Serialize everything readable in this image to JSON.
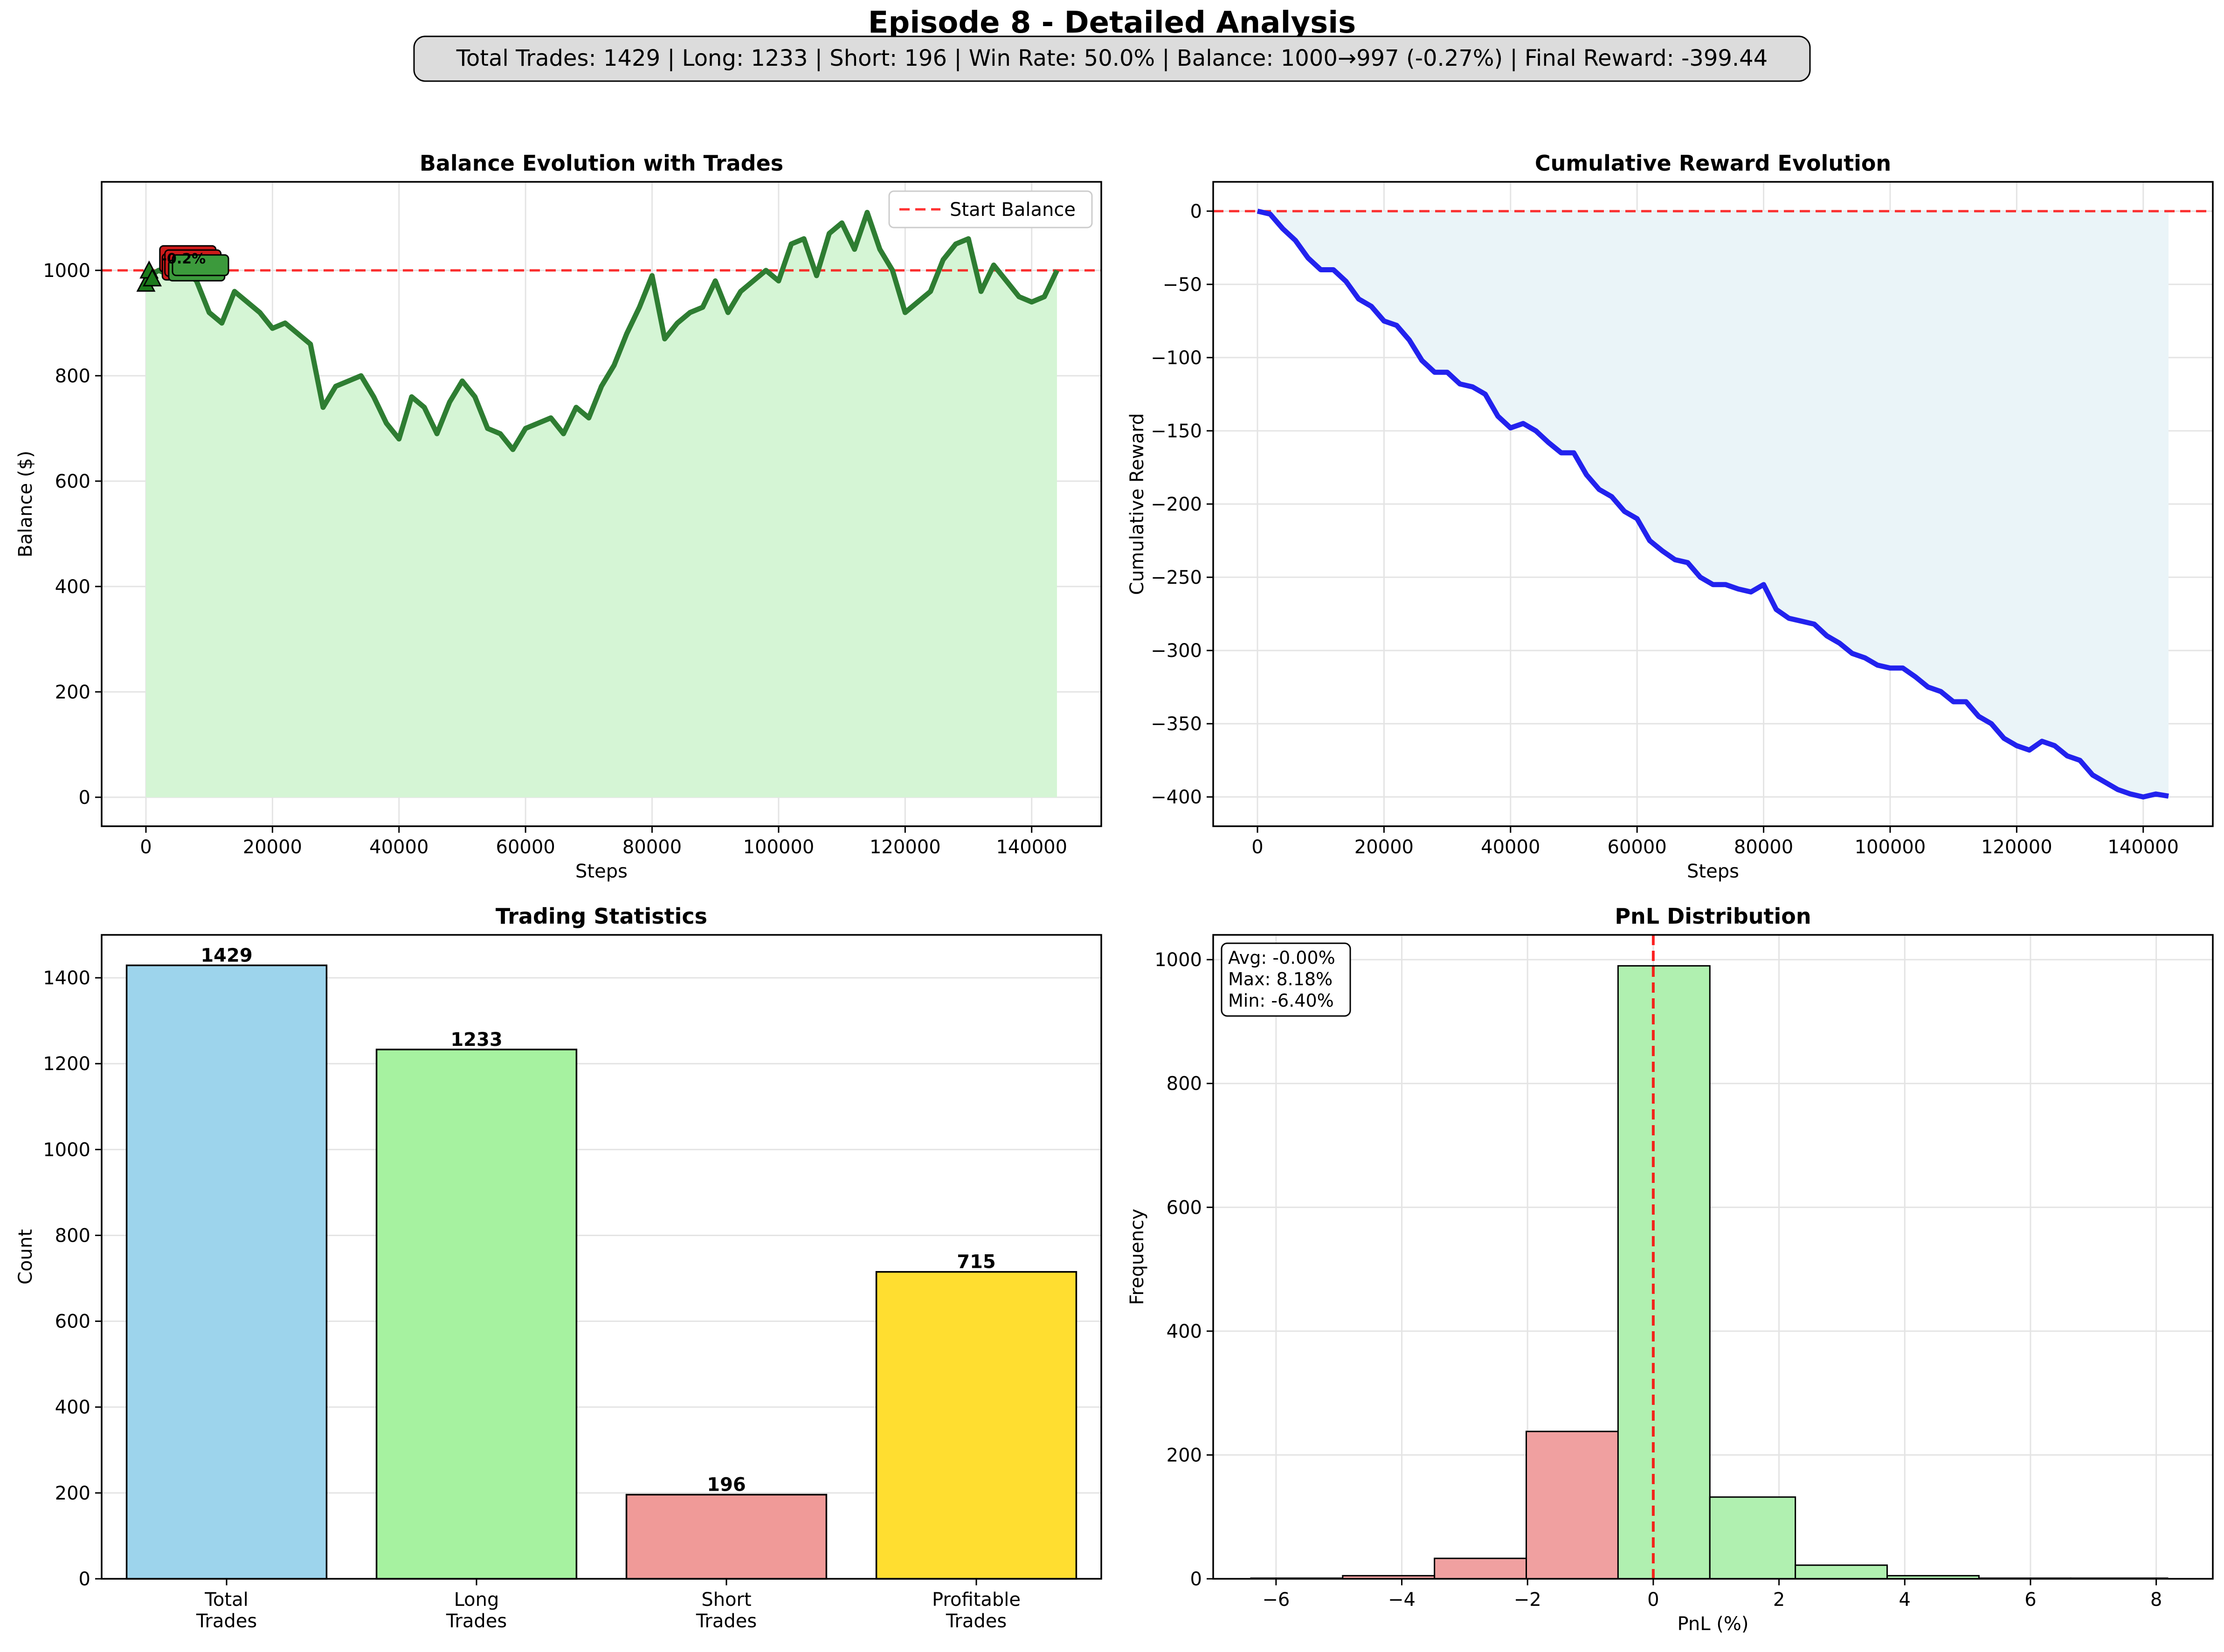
{
  "figure": {
    "title": "Episode 8 - Detailed Analysis",
    "summary": "Total Trades: 1429 | Long: 1233 | Short: 196 | Win Rate: 50.0% | Balance: 1000→997 (-0.27%) | Final Reward: -399.44"
  },
  "chart_data": [
    {
      "id": "balance",
      "type": "line",
      "title": "Balance Evolution with Trades",
      "xlabel": "Steps",
      "ylabel": "Balance ($)",
      "xlim": [
        -7000,
        151000
      ],
      "ylim": [
        -55,
        1168
      ],
      "xticks": [
        0,
        20000,
        40000,
        60000,
        80000,
        100000,
        120000,
        140000
      ],
      "yticks": [
        0,
        200,
        400,
        600,
        800,
        1000
      ],
      "grid": true,
      "legend": {
        "position": "top-right",
        "entries": [
          "Start Balance"
        ]
      },
      "reference_line": {
        "y": 1000,
        "label": "Start Balance",
        "color": "#ff0000",
        "style": "dashed"
      },
      "line_color": "#2e7d32",
      "fill_color": "#d5f5d5",
      "trade_marker_labels": [
        "-0.2%"
      ],
      "series": [
        {
          "x": [
            0,
            2000,
            4000,
            6000,
            8000,
            10000,
            12000,
            14000,
            16000,
            18000,
            20000,
            22000,
            24000,
            26000,
            28000,
            30000,
            32000,
            34000,
            36000,
            38000,
            40000,
            42000,
            44000,
            46000,
            48000,
            50000,
            52000,
            54000,
            56000,
            58000,
            60000,
            62000,
            64000,
            66000,
            68000,
            70000,
            72000,
            74000,
            76000,
            78000,
            80000,
            82000,
            84000,
            86000,
            88000,
            90000,
            92000,
            94000,
            96000,
            98000,
            100000,
            102000,
            104000,
            106000,
            108000,
            110000,
            112000,
            114000,
            116000,
            118000,
            120000,
            122000,
            124000,
            126000,
            128000,
            130000,
            132000,
            134000,
            136000,
            138000,
            140000,
            142000,
            144000
          ],
          "y": [
            985,
            1000,
            990,
            1000,
            980,
            920,
            900,
            960,
            940,
            920,
            890,
            900,
            880,
            860,
            740,
            780,
            790,
            800,
            760,
            710,
            680,
            760,
            740,
            690,
            750,
            790,
            760,
            700,
            690,
            660,
            700,
            710,
            720,
            690,
            740,
            720,
            780,
            820,
            880,
            930,
            990,
            870,
            900,
            920,
            930,
            980,
            920,
            960,
            980,
            1000,
            980,
            1050,
            1060,
            990,
            1070,
            1090,
            1040,
            1110,
            1040,
            1000,
            920,
            940,
            960,
            1020,
            1050,
            1060,
            960,
            1010,
            980,
            950,
            940,
            950,
            1000
          ]
        }
      ]
    },
    {
      "id": "reward",
      "type": "line",
      "title": "Cumulative Reward Evolution",
      "xlabel": "Steps",
      "ylabel": "Cumulative Reward",
      "xlim": [
        -7000,
        151000
      ],
      "ylim": [
        -420,
        20
      ],
      "xticks": [
        0,
        20000,
        40000,
        60000,
        80000,
        100000,
        120000,
        140000
      ],
      "yticks": [
        -400,
        -350,
        -300,
        -250,
        -200,
        -150,
        -100,
        -50,
        0
      ],
      "grid": true,
      "reference_line": {
        "y": 0,
        "color": "#ff0000",
        "style": "dashed"
      },
      "line_color": "#2222ee",
      "fill_color": "#eaf4f8",
      "series": [
        {
          "x": [
            0,
            2000,
            4000,
            6000,
            8000,
            10000,
            12000,
            14000,
            16000,
            18000,
            20000,
            22000,
            24000,
            26000,
            28000,
            30000,
            32000,
            34000,
            36000,
            38000,
            40000,
            42000,
            44000,
            46000,
            48000,
            50000,
            52000,
            54000,
            56000,
            58000,
            60000,
            62000,
            64000,
            66000,
            68000,
            70000,
            72000,
            74000,
            76000,
            78000,
            80000,
            82000,
            84000,
            86000,
            88000,
            90000,
            92000,
            94000,
            96000,
            98000,
            100000,
            102000,
            104000,
            106000,
            108000,
            110000,
            112000,
            114000,
            116000,
            118000,
            120000,
            122000,
            124000,
            126000,
            128000,
            130000,
            132000,
            134000,
            136000,
            138000,
            140000,
            142000,
            144000
          ],
          "y": [
            0,
            -2,
            -12,
            -20,
            -32,
            -40,
            -40,
            -48,
            -60,
            -65,
            -75,
            -78,
            -88,
            -102,
            -110,
            -110,
            -118,
            -120,
            -125,
            -140,
            -148,
            -145,
            -150,
            -158,
            -165,
            -165,
            -180,
            -190,
            -195,
            -205,
            -210,
            -225,
            -232,
            -238,
            -240,
            -250,
            -255,
            -255,
            -258,
            -260,
            -255,
            -272,
            -278,
            -280,
            -282,
            -290,
            -295,
            -302,
            -305,
            -310,
            -312,
            -312,
            -318,
            -325,
            -328,
            -335,
            -335,
            -345,
            -350,
            -360,
            -365,
            -368,
            -362,
            -365,
            -372,
            -375,
            -385,
            -390,
            -395,
            -398,
            -400,
            -398,
            -399.44
          ]
        }
      ]
    },
    {
      "id": "stats",
      "type": "bar",
      "title": "Trading Statistics",
      "ylabel": "Count",
      "ylim": [
        0,
        1500
      ],
      "yticks": [
        0,
        200,
        400,
        600,
        800,
        1000,
        1200,
        1400
      ],
      "grid": true,
      "categories": [
        [
          "Total",
          "Trades"
        ],
        [
          "Long",
          "Trades"
        ],
        [
          "Short",
          "Trades"
        ],
        [
          "Profitable",
          "Trades"
        ]
      ],
      "values": [
        1429,
        1233,
        196,
        715
      ],
      "colors": [
        "#9dd4ec",
        "#a6f2a0",
        "#f09a98",
        "#ffde30"
      ]
    },
    {
      "id": "pnl",
      "type": "bar",
      "title": "PnL Distribution",
      "xlabel": "PnL (%)",
      "ylabel": "Frequency",
      "xlim": [
        -7.0,
        8.9
      ],
      "ylim": [
        0,
        1040
      ],
      "xticks": [
        -6,
        -4,
        -2,
        0,
        2,
        4,
        6,
        8
      ],
      "yticks": [
        0,
        200,
        400,
        600,
        800,
        1000
      ],
      "grid": true,
      "reference_line": {
        "x": 0,
        "color": "#ff0000",
        "style": "dashed"
      },
      "stats_box": [
        "Avg: -0.00%",
        "Max: 8.18%",
        "Min: -6.40%"
      ],
      "bins": [
        {
          "x0": -6.4,
          "x1": -4.94,
          "count": 1
        },
        {
          "x0": -4.94,
          "x1": -3.48,
          "count": 5
        },
        {
          "x0": -3.48,
          "x1": -2.02,
          "count": 33
        },
        {
          "x0": -2.02,
          "x1": -0.56,
          "count": 238
        },
        {
          "x0": -0.56,
          "x1": 0.9,
          "count": 990
        },
        {
          "x0": 0.9,
          "x1": 2.26,
          "count": 132
        },
        {
          "x0": 2.26,
          "x1": 3.72,
          "count": 22
        },
        {
          "x0": 3.72,
          "x1": 5.18,
          "count": 5
        },
        {
          "x0": 5.18,
          "x1": 6.64,
          "count": 1
        },
        {
          "x0": 6.64,
          "x1": 8.18,
          "count": 1
        }
      ],
      "negative_color": "#f0a0a0",
      "positive_color": "#b0f0b0"
    }
  ]
}
